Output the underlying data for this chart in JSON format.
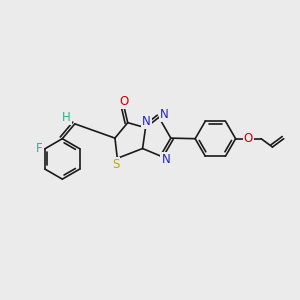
{
  "background_color": "#ebebeb",
  "bond_color": "#1a1a1a",
  "atoms": {
    "F": {
      "color": "#30b090",
      "fontsize": 8.5
    },
    "H": {
      "color": "#30b090",
      "fontsize": 8.5
    },
    "O_carbonyl": {
      "color": "#cc0000",
      "fontsize": 8.5
    },
    "O_ether": {
      "color": "#cc0000",
      "fontsize": 8.5
    },
    "N": {
      "color": "#2222cc",
      "fontsize": 8.5
    },
    "S": {
      "color": "#bbaa00",
      "fontsize": 8.5
    }
  },
  "figsize": [
    3.0,
    3.0
  ],
  "dpi": 100
}
